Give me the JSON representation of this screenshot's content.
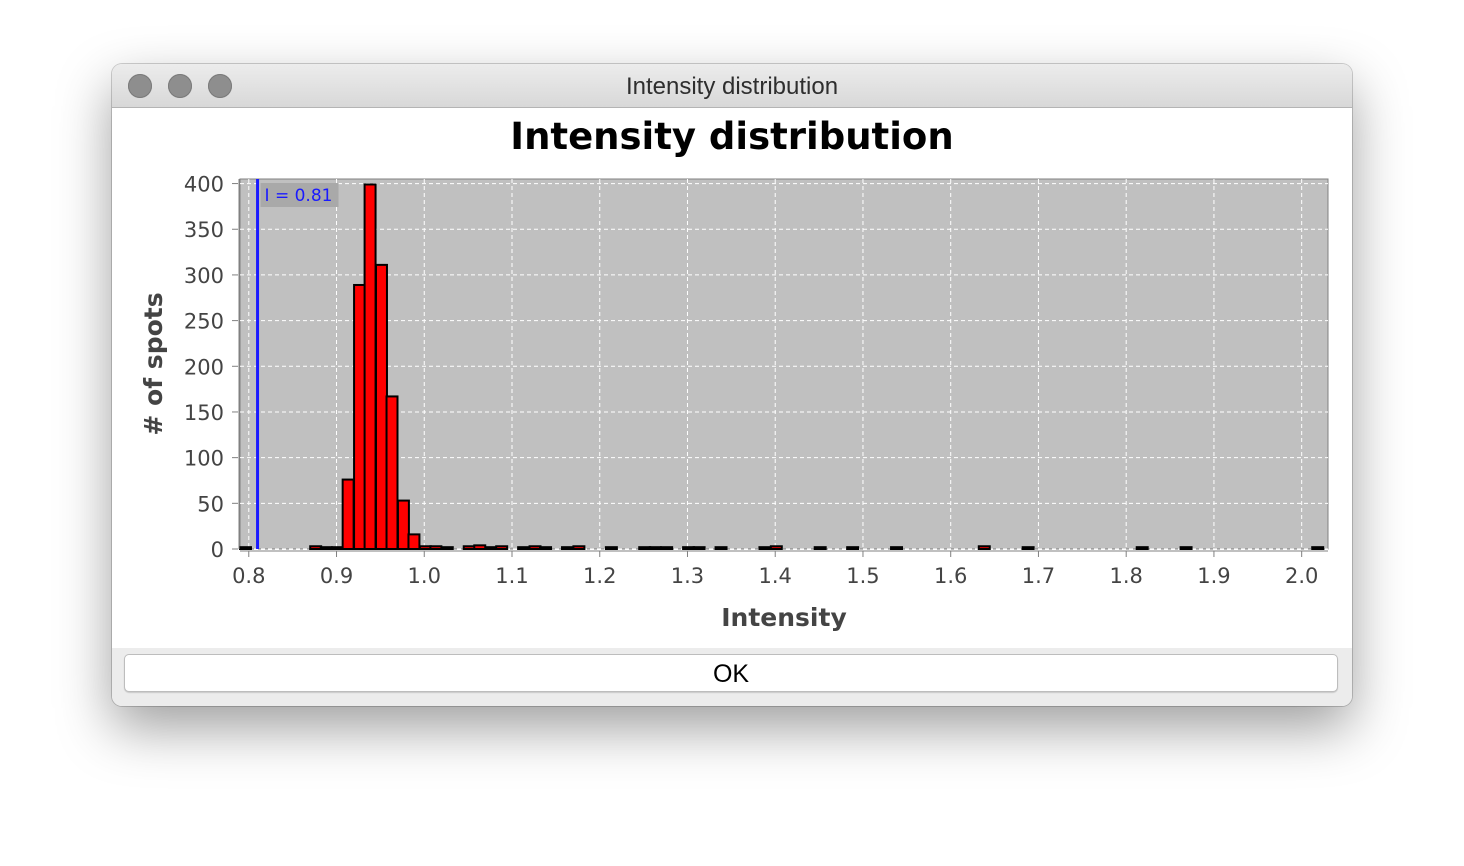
{
  "window": {
    "title": "Intensity distribution"
  },
  "buttons": {
    "ok_label": "OK"
  },
  "colors": {
    "bar_fill": "#ff0000",
    "bar_stroke": "#000000",
    "plot_background": "#c0c0c0",
    "threshold_line": "#1a1aff"
  },
  "chart_data": {
    "type": "bar",
    "title": "Intensity distribution",
    "xlabel": "Intensity",
    "ylabel": "# of spots",
    "xlim": [
      0.79,
      2.03
    ],
    "ylim": [
      0,
      405
    ],
    "x_ticks": [
      "0.8",
      "0.9",
      "1.0",
      "1.1",
      "1.2",
      "1.3",
      "1.4",
      "1.5",
      "1.6",
      "1.7",
      "1.8",
      "1.9",
      "2.0"
    ],
    "y_ticks": [
      "0",
      "50",
      "100",
      "150",
      "200",
      "250",
      "300",
      "350",
      "400"
    ],
    "grid": true,
    "bin_width": 0.0125,
    "bins": [
      {
        "x0": 0.79,
        "count": 2
      },
      {
        "x0": 0.87,
        "count": 3
      },
      {
        "x0": 0.882,
        "count": 2
      },
      {
        "x0": 0.895,
        "count": 2
      },
      {
        "x0": 0.907,
        "count": 76
      },
      {
        "x0": 0.92,
        "count": 289
      },
      {
        "x0": 0.932,
        "count": 399
      },
      {
        "x0": 0.945,
        "count": 311
      },
      {
        "x0": 0.957,
        "count": 167
      },
      {
        "x0": 0.97,
        "count": 53
      },
      {
        "x0": 0.982,
        "count": 16
      },
      {
        "x0": 0.995,
        "count": 3
      },
      {
        "x0": 1.007,
        "count": 3
      },
      {
        "x0": 1.02,
        "count": 2
      },
      {
        "x0": 1.045,
        "count": 3
      },
      {
        "x0": 1.057,
        "count": 4
      },
      {
        "x0": 1.07,
        "count": 2
      },
      {
        "x0": 1.082,
        "count": 3
      },
      {
        "x0": 1.107,
        "count": 2
      },
      {
        "x0": 1.12,
        "count": 3
      },
      {
        "x0": 1.132,
        "count": 2
      },
      {
        "x0": 1.157,
        "count": 2
      },
      {
        "x0": 1.17,
        "count": 3
      },
      {
        "x0": 1.207,
        "count": 2
      },
      {
        "x0": 1.245,
        "count": 2
      },
      {
        "x0": 1.257,
        "count": 2
      },
      {
        "x0": 1.27,
        "count": 2
      },
      {
        "x0": 1.295,
        "count": 2
      },
      {
        "x0": 1.307,
        "count": 2
      },
      {
        "x0": 1.332,
        "count": 2
      },
      {
        "x0": 1.382,
        "count": 2
      },
      {
        "x0": 1.395,
        "count": 3
      },
      {
        "x0": 1.445,
        "count": 2
      },
      {
        "x0": 1.482,
        "count": 2
      },
      {
        "x0": 1.532,
        "count": 2
      },
      {
        "x0": 1.632,
        "count": 3
      },
      {
        "x0": 1.682,
        "count": 2
      },
      {
        "x0": 1.812,
        "count": 2
      },
      {
        "x0": 1.862,
        "count": 2
      },
      {
        "x0": 2.012,
        "count": 2
      }
    ],
    "threshold": {
      "value": 0.81,
      "label": "I = 0.81"
    }
  }
}
